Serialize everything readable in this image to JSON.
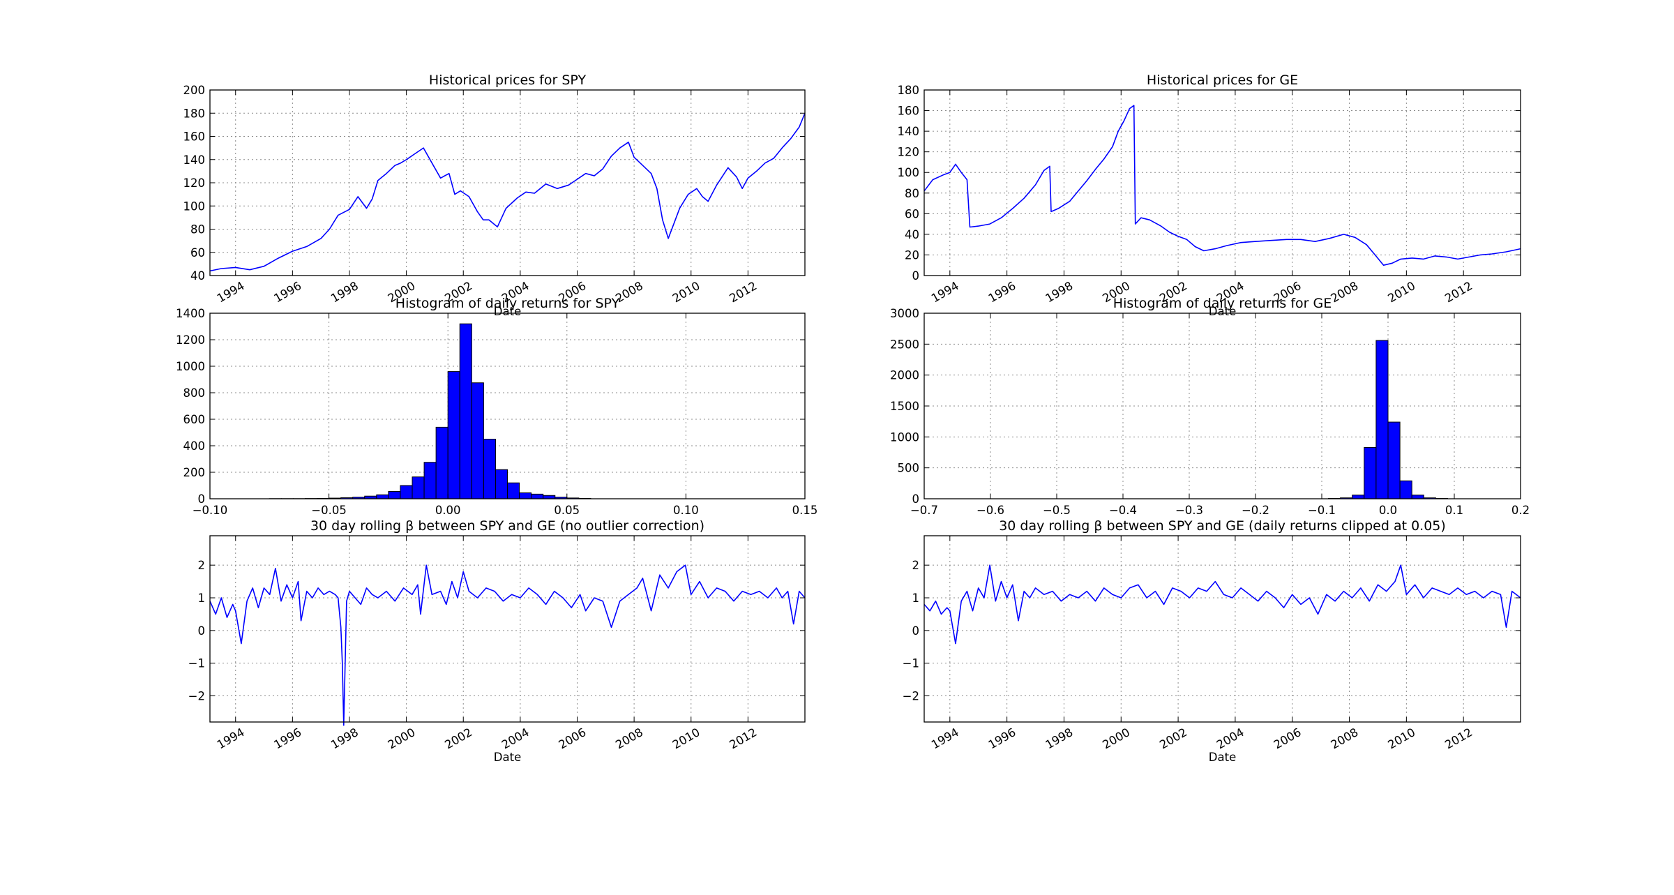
{
  "chart_data": [
    {
      "id": "spy-prices",
      "type": "line",
      "title": "Historical prices for SPY",
      "xlabel": "Date",
      "ylabel": "",
      "xlim": [
        1993.1,
        2014.0
      ],
      "ylim": [
        40,
        200
      ],
      "yticks": [
        40,
        60,
        80,
        100,
        120,
        140,
        160,
        180,
        200
      ],
      "xticks": [
        1994,
        1996,
        1998,
        2000,
        2002,
        2004,
        2006,
        2008,
        2010,
        2012
      ],
      "xtick_labels": [
        "1994",
        "1996",
        "1998",
        "2000",
        "2002",
        "2004",
        "2006",
        "2008",
        "2010",
        "2012"
      ],
      "grid": true,
      "series": [
        {
          "color": "#0000ff",
          "x": [
            1993.1,
            1993.5,
            1994.0,
            1994.5,
            1995.0,
            1995.5,
            1996.0,
            1996.5,
            1997.0,
            1997.3,
            1997.6,
            1998.0,
            1998.3,
            1998.6,
            1998.8,
            1999.0,
            1999.3,
            1999.6,
            1999.8,
            2000.0,
            2000.3,
            2000.6,
            2000.9,
            2001.2,
            2001.5,
            2001.7,
            2001.9,
            2002.2,
            2002.5,
            2002.7,
            2002.9,
            2003.2,
            2003.5,
            2003.9,
            2004.2,
            2004.5,
            2004.9,
            2005.3,
            2005.7,
            2006.0,
            2006.3,
            2006.6,
            2006.9,
            2007.2,
            2007.5,
            2007.8,
            2008.0,
            2008.3,
            2008.6,
            2008.8,
            2009.0,
            2009.2,
            2009.4,
            2009.6,
            2009.9,
            2010.2,
            2010.4,
            2010.6,
            2010.9,
            2011.3,
            2011.6,
            2011.8,
            2012.0,
            2012.3,
            2012.6,
            2012.9,
            2013.2,
            2013.5,
            2013.8,
            2014.0
          ],
          "y": [
            44,
            46,
            47,
            45,
            48,
            55,
            61,
            65,
            72,
            80,
            92,
            97,
            108,
            98,
            106,
            122,
            128,
            135,
            137,
            140,
            145,
            150,
            137,
            124,
            128,
            110,
            113,
            108,
            95,
            88,
            88,
            82,
            98,
            107,
            112,
            111,
            119,
            115,
            118,
            123,
            128,
            126,
            132,
            143,
            150,
            155,
            142,
            135,
            128,
            115,
            88,
            72,
            85,
            98,
            110,
            115,
            108,
            104,
            118,
            133,
            125,
            115,
            124,
            130,
            137,
            141,
            150,
            158,
            168,
            180
          ]
        }
      ]
    },
    {
      "id": "ge-prices",
      "type": "line",
      "title": "Historical prices for GE",
      "xlabel": "Date",
      "ylabel": "",
      "xlim": [
        1993.1,
        2014.0
      ],
      "ylim": [
        0,
        180
      ],
      "yticks": [
        0,
        20,
        40,
        60,
        80,
        100,
        120,
        140,
        160,
        180
      ],
      "xticks": [
        1994,
        1996,
        1998,
        2000,
        2002,
        2004,
        2006,
        2008,
        2010,
        2012
      ],
      "xtick_labels": [
        "1994",
        "1996",
        "1998",
        "2000",
        "2002",
        "2004",
        "2006",
        "2008",
        "2010",
        "2012"
      ],
      "grid": true,
      "series": [
        {
          "color": "#0000ff",
          "x": [
            1993.1,
            1993.4,
            1993.8,
            1994.0,
            1994.2,
            1994.4,
            1994.6,
            1994.7,
            1995.0,
            1995.4,
            1995.8,
            1996.2,
            1996.6,
            1997.0,
            1997.3,
            1997.5,
            1997.55,
            1997.8,
            1998.2,
            1998.5,
            1998.8,
            1999.1,
            1999.4,
            1999.7,
            1999.9,
            2000.1,
            2000.3,
            2000.45,
            2000.5,
            2000.7,
            2001.0,
            2001.4,
            2001.7,
            2002.0,
            2002.3,
            2002.6,
            2002.9,
            2003.3,
            2003.7,
            2004.2,
            2004.7,
            2005.2,
            2005.8,
            2006.3,
            2006.8,
            2007.3,
            2007.8,
            2008.2,
            2008.6,
            2008.9,
            2009.2,
            2009.5,
            2009.8,
            2010.2,
            2010.6,
            2011.0,
            2011.4,
            2011.8,
            2012.2,
            2012.6,
            2013.0,
            2013.5,
            2014.0
          ],
          "y": [
            82,
            93,
            98,
            100,
            108,
            100,
            93,
            47,
            48,
            50,
            56,
            65,
            75,
            88,
            102,
            106,
            62,
            65,
            72,
            82,
            92,
            103,
            113,
            125,
            140,
            150,
            162,
            165,
            50,
            56,
            54,
            48,
            42,
            38,
            35,
            28,
            24,
            26,
            29,
            32,
            33,
            34,
            35,
            35,
            33,
            36,
            40,
            37,
            30,
            20,
            10,
            12,
            16,
            17,
            16,
            19,
            18,
            16,
            18,
            20,
            21,
            23,
            26
          ]
        }
      ]
    },
    {
      "id": "spy-hist",
      "type": "bar",
      "title": "Histogram of daily returns for SPY",
      "xlim": [
        -0.1,
        0.15
      ],
      "ylim": [
        0,
        1400
      ],
      "yticks": [
        0,
        200,
        400,
        600,
        800,
        1000,
        1200,
        1400
      ],
      "ytick_labels": [
        "0",
        "200",
        "400",
        "600",
        "800",
        "1000",
        "1200",
        "1400"
      ],
      "xticks": [
        -0.1,
        -0.05,
        0.0,
        0.05,
        0.1,
        0.15
      ],
      "xtick_labels": [
        "−0.10",
        "−0.05",
        "0.00",
        "0.05",
        "0.10",
        "0.15"
      ],
      "grid": true,
      "bin_width": 0.005,
      "bin_starts": [
        -0.075,
        -0.07,
        -0.065,
        -0.06,
        -0.055,
        -0.05,
        -0.045,
        -0.04,
        -0.035,
        -0.03,
        -0.025,
        -0.02,
        -0.015,
        -0.01,
        -0.005,
        0.0,
        0.005,
        0.01,
        0.015,
        0.02,
        0.025,
        0.03,
        0.035,
        0.04,
        0.045,
        0.05,
        0.055
      ],
      "values": [
        1,
        1,
        1,
        2,
        3,
        5,
        8,
        12,
        20,
        30,
        55,
        100,
        165,
        275,
        540,
        960,
        1320,
        875,
        450,
        220,
        120,
        45,
        35,
        25,
        12,
        6,
        3
      ]
    },
    {
      "id": "ge-hist",
      "type": "bar",
      "title": "Histogram of daily returns for GE",
      "xlim": [
        -0.7,
        0.2
      ],
      "ylim": [
        0,
        3000
      ],
      "yticks": [
        0,
        500,
        1000,
        1500,
        2000,
        2500,
        3000
      ],
      "ytick_labels": [
        "0",
        "500",
        "1000",
        "1500",
        "2000",
        "2500",
        "3000"
      ],
      "xticks": [
        -0.7,
        -0.6,
        -0.5,
        -0.4,
        -0.3,
        -0.2,
        -0.1,
        0.0,
        0.1,
        0.2
      ],
      "xtick_labels": [
        "−0.7",
        "−0.6",
        "−0.5",
        "−0.4",
        "−0.3",
        "−0.2",
        "−0.1",
        "0.0",
        "0.1",
        "0.2"
      ],
      "grid": true,
      "bin_width": 0.018,
      "bin_starts": [
        -0.09,
        -0.072,
        -0.054,
        -0.036,
        -0.018,
        0.0,
        0.018,
        0.036,
        0.054,
        0.072
      ],
      "values": [
        5,
        15,
        60,
        830,
        2560,
        1240,
        290,
        60,
        15,
        5
      ]
    },
    {
      "id": "beta-raw",
      "type": "line",
      "title": "30 day rolling β between SPY and GE (no outlier correction)",
      "xlabel": "Date",
      "ylabel": "",
      "xlim": [
        1993.1,
        2014.0
      ],
      "ylim": [
        -2.8,
        2.9
      ],
      "yticks": [
        -2,
        -1,
        0,
        1,
        2
      ],
      "ytick_labels": [
        "−2",
        "−1",
        "0",
        "1",
        "2"
      ],
      "xticks": [
        1994,
        1996,
        1998,
        2000,
        2002,
        2004,
        2006,
        2008,
        2010,
        2012
      ],
      "xtick_labels": [
        "1994",
        "1996",
        "1998",
        "2000",
        "2002",
        "2004",
        "2006",
        "2008",
        "2010",
        "2012"
      ],
      "grid": true,
      "series": [
        {
          "color": "#0000ff",
          "x": [
            1993.1,
            1993.3,
            1993.5,
            1993.7,
            1993.9,
            1994.0,
            1994.2,
            1994.4,
            1994.6,
            1994.8,
            1995.0,
            1995.2,
            1995.4,
            1995.6,
            1995.8,
            1996.0,
            1996.2,
            1996.3,
            1996.5,
            1996.7,
            1996.9,
            1997.1,
            1997.3,
            1997.5,
            1997.6,
            1997.7,
            1997.75,
            1997.8,
            1997.9,
            1998.0,
            1998.2,
            1998.4,
            1998.6,
            1998.8,
            1999.0,
            1999.3,
            1999.6,
            1999.9,
            2000.2,
            2000.4,
            2000.5,
            2000.7,
            2000.9,
            2001.2,
            2001.4,
            2001.6,
            2001.8,
            2002.0,
            2002.2,
            2002.5,
            2002.8,
            2003.1,
            2003.4,
            2003.7,
            2004.0,
            2004.3,
            2004.6,
            2004.9,
            2005.2,
            2005.5,
            2005.8,
            2006.1,
            2006.3,
            2006.6,
            2006.9,
            2007.2,
            2007.5,
            2007.8,
            2008.1,
            2008.3,
            2008.6,
            2008.9,
            2009.2,
            2009.5,
            2009.8,
            2010.0,
            2010.3,
            2010.6,
            2010.9,
            2011.2,
            2011.5,
            2011.8,
            2012.1,
            2012.4,
            2012.7,
            2013.0,
            2013.2,
            2013.4,
            2013.6,
            2013.8,
            2014.0
          ],
          "y": [
            0.9,
            0.5,
            1.0,
            0.4,
            0.8,
            0.6,
            -0.4,
            0.9,
            1.3,
            0.7,
            1.3,
            1.1,
            1.9,
            0.9,
            1.4,
            1.0,
            1.5,
            0.3,
            1.2,
            1.0,
            1.3,
            1.1,
            1.2,
            1.1,
            1.0,
            0.1,
            -1.0,
            -2.9,
            0.9,
            1.2,
            1.0,
            0.8,
            1.3,
            1.1,
            1.0,
            1.2,
            0.9,
            1.3,
            1.1,
            1.4,
            0.5,
            2.0,
            1.1,
            1.2,
            0.8,
            1.5,
            1.0,
            1.8,
            1.2,
            1.0,
            1.3,
            1.2,
            0.9,
            1.1,
            1.0,
            1.3,
            1.1,
            0.8,
            1.2,
            1.0,
            0.7,
            1.1,
            0.6,
            1.0,
            0.9,
            0.1,
            0.9,
            1.1,
            1.3,
            1.6,
            0.6,
            1.7,
            1.3,
            1.8,
            2.0,
            1.1,
            1.5,
            1.0,
            1.3,
            1.2,
            0.9,
            1.2,
            1.1,
            1.2,
            1.0,
            1.3,
            1.0,
            1.2,
            0.2,
            1.2,
            1.0
          ]
        }
      ]
    },
    {
      "id": "beta-clipped",
      "type": "line",
      "title": "30 day rolling β between SPY and GE (daily returns clipped at 0.05)",
      "xlabel": "Date",
      "ylabel": "",
      "xlim": [
        1993.1,
        2014.0
      ],
      "ylim": [
        -2.8,
        2.9
      ],
      "yticks": [
        -2,
        -1,
        0,
        1,
        2
      ],
      "ytick_labels": [
        "−2",
        "−1",
        "0",
        "1",
        "2"
      ],
      "xticks": [
        1994,
        1996,
        1998,
        2000,
        2002,
        2004,
        2006,
        2008,
        2010,
        2012
      ],
      "xtick_labels": [
        "1994",
        "1996",
        "1998",
        "2000",
        "2002",
        "2004",
        "2006",
        "2008",
        "2010",
        "2012"
      ],
      "grid": true,
      "series": [
        {
          "color": "#0000ff",
          "x": [
            1993.1,
            1993.3,
            1993.5,
            1993.7,
            1993.9,
            1994.0,
            1994.2,
            1994.4,
            1994.6,
            1994.8,
            1995.0,
            1995.2,
            1995.4,
            1995.6,
            1995.8,
            1996.0,
            1996.2,
            1996.4,
            1996.6,
            1996.8,
            1997.0,
            1997.3,
            1997.6,
            1997.9,
            1998.2,
            1998.5,
            1998.8,
            1999.1,
            1999.4,
            1999.7,
            2000.0,
            2000.3,
            2000.6,
            2000.9,
            2001.2,
            2001.5,
            2001.8,
            2002.1,
            2002.4,
            2002.7,
            2003.0,
            2003.3,
            2003.6,
            2003.9,
            2004.2,
            2004.5,
            2004.8,
            2005.1,
            2005.4,
            2005.7,
            2006.0,
            2006.3,
            2006.6,
            2006.9,
            2007.2,
            2007.5,
            2007.8,
            2008.1,
            2008.4,
            2008.7,
            2009.0,
            2009.3,
            2009.6,
            2009.8,
            2010.0,
            2010.3,
            2010.6,
            2010.9,
            2011.2,
            2011.5,
            2011.8,
            2012.1,
            2012.4,
            2012.7,
            2013.0,
            2013.3,
            2013.5,
            2013.7,
            2014.0
          ],
          "y": [
            0.8,
            0.6,
            0.9,
            0.5,
            0.7,
            0.6,
            -0.4,
            0.9,
            1.2,
            0.6,
            1.3,
            1.0,
            2.0,
            0.9,
            1.5,
            1.0,
            1.4,
            0.3,
            1.2,
            1.0,
            1.3,
            1.1,
            1.2,
            0.9,
            1.1,
            1.0,
            1.2,
            0.9,
            1.3,
            1.1,
            1.0,
            1.3,
            1.4,
            1.0,
            1.2,
            0.8,
            1.3,
            1.2,
            1.0,
            1.3,
            1.2,
            1.5,
            1.1,
            1.0,
            1.3,
            1.1,
            0.9,
            1.2,
            1.0,
            0.7,
            1.1,
            0.8,
            1.0,
            0.5,
            1.1,
            0.9,
            1.2,
            1.0,
            1.3,
            0.9,
            1.4,
            1.2,
            1.5,
            2.0,
            1.1,
            1.4,
            1.0,
            1.3,
            1.2,
            1.1,
            1.3,
            1.1,
            1.2,
            1.0,
            1.2,
            1.1,
            0.1,
            1.2,
            1.0
          ]
        }
      ]
    }
  ]
}
